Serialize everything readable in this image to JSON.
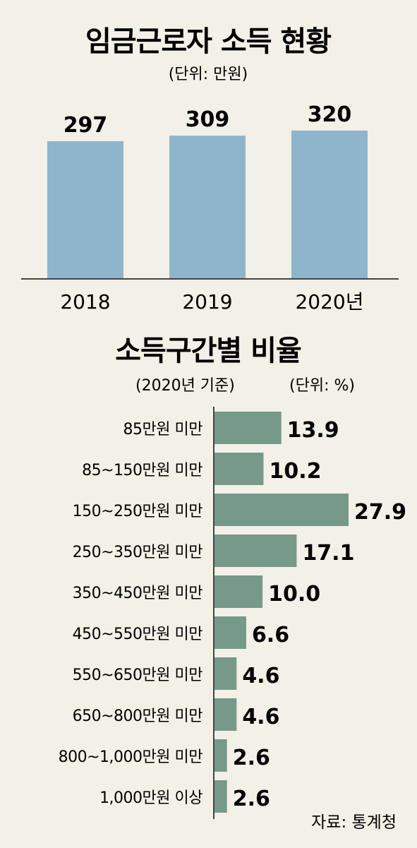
{
  "chart_data": [
    {
      "type": "bar",
      "title": "임금근로자 소득 현황",
      "unit_label": "(단위: 만원)",
      "categories": [
        "2018",
        "2019",
        "2020년"
      ],
      "values": [
        297,
        309,
        320
      ],
      "data_labels": [
        "297",
        "309",
        "320"
      ],
      "colors": {
        "bar": "#8fb5cc",
        "axis": "#444444"
      }
    },
    {
      "type": "bar",
      "orientation": "horizontal",
      "title": "소득구간별 비율",
      "subtitle": "(2020년 기준)",
      "unit_label": "(단위: %)",
      "categories": [
        "85만원 미만",
        "85~150만원 미만",
        "150~250만원 미만",
        "250~350만원 미만",
        "350~450만원 미만",
        "450~550만원 미만",
        "550~650만원 미만",
        "650~800만원 미만",
        "800~1,000만원 미만",
        "1,000만원 이상"
      ],
      "values": [
        13.9,
        10.2,
        27.9,
        17.1,
        10.0,
        6.6,
        4.6,
        4.6,
        2.6,
        2.6
      ],
      "data_labels": [
        "13.9",
        "10.2",
        "27.9",
        "17.1",
        "10.0",
        "6.6",
        "4.6",
        "4.6",
        "2.6",
        "2.6"
      ],
      "colors": {
        "bar": "#76998a",
        "axis": "#444444"
      }
    }
  ],
  "source": "자료: 통계청",
  "colors": {
    "background": "#f3f0e8",
    "text": "#1a1a1a"
  }
}
